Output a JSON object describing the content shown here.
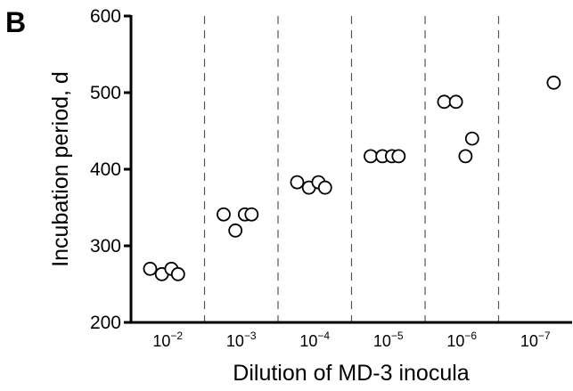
{
  "panel_label": "B",
  "chart_data": {
    "type": "scatter",
    "title": "",
    "xlabel": "Dilution of MD-3 inocula",
    "ylabel": "Incubation period, d",
    "ylim": [
      200,
      600
    ],
    "yticks": [
      200,
      300,
      400,
      500,
      600
    ],
    "grid": "dashed vertical separators between dilution groups",
    "marker": "open circle",
    "categories": [
      {
        "base": "10",
        "exp": "−2"
      },
      {
        "base": "10",
        "exp": "−3"
      },
      {
        "base": "10",
        "exp": "−4"
      },
      {
        "base": "10",
        "exp": "−5"
      },
      {
        "base": "10",
        "exp": "−6"
      },
      {
        "base": "10",
        "exp": "−7"
      }
    ],
    "groups": [
      {
        "category_index": 0,
        "values": [
          270,
          263,
          270,
          263
        ]
      },
      {
        "category_index": 1,
        "values": [
          341,
          320,
          341,
          341
        ]
      },
      {
        "category_index": 2,
        "values": [
          383,
          376,
          383,
          376
        ]
      },
      {
        "category_index": 3,
        "values": [
          417,
          417,
          417,
          417
        ]
      },
      {
        "category_index": 4,
        "values": [
          488,
          488,
          417,
          440
        ]
      },
      {
        "category_index": 5,
        "values": [
          513
        ]
      }
    ]
  }
}
